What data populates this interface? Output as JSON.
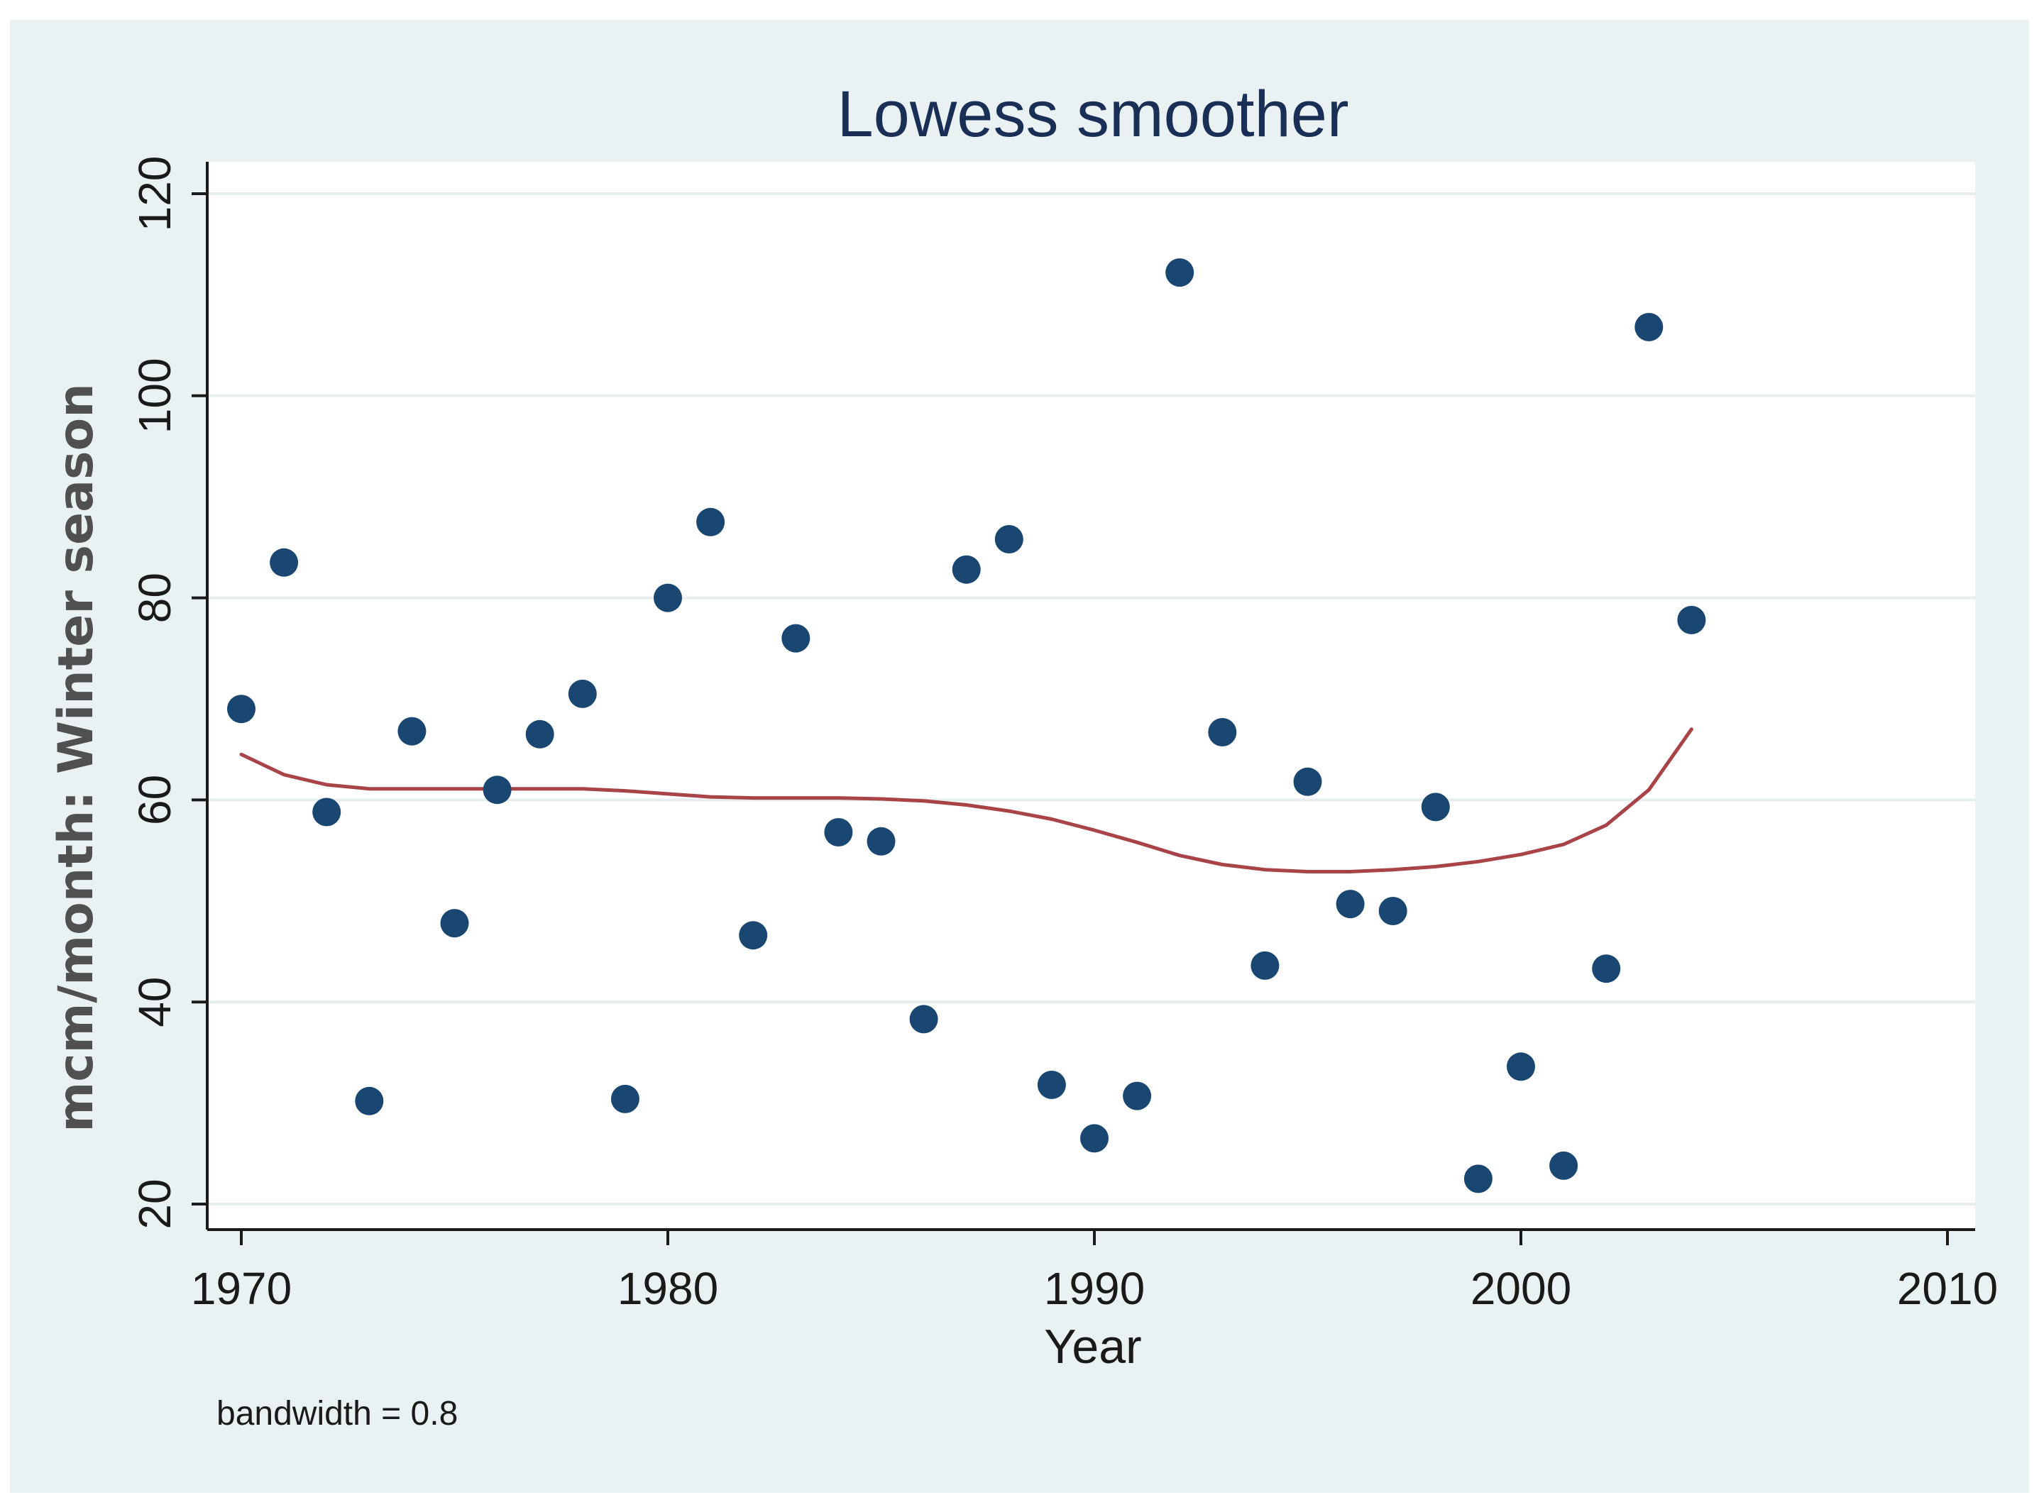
{
  "chart_data": {
    "type": "scatter",
    "title": "Lowess smoother",
    "xlabel": "Year",
    "ylabel": "mcm/month: Winter season",
    "xlim": [
      1969.25,
      2010.75
    ],
    "ylim": [
      17.5,
      123
    ],
    "x_ticks": [
      1970,
      1980,
      1990,
      2000,
      2010
    ],
    "y_ticks": [
      20,
      40,
      60,
      80,
      100,
      120
    ],
    "x_tick_labels": [
      "1970",
      "1980",
      "1990",
      "2000",
      "2010"
    ],
    "y_tick_labels": [
      "20",
      "40",
      "60",
      "80",
      "100",
      "120"
    ],
    "grid": true,
    "legend": "none",
    "note": "bandwidth = 0.8",
    "series": [
      {
        "name": "observed",
        "kind": "scatter",
        "color": "#1a4672",
        "x": [
          1970,
          1971,
          1972,
          1973,
          1974,
          1975,
          1976,
          1977,
          1978,
          1979,
          1980,
          1981,
          1982,
          1983,
          1984,
          1985,
          1986,
          1987,
          1988,
          1989,
          1990,
          1991,
          1992,
          1993,
          1994,
          1995,
          1996,
          1997,
          1998,
          1999,
          2000,
          2001,
          2002,
          2003,
          2004
        ],
        "y": [
          69,
          83.5,
          58.8,
          30.2,
          66.8,
          47.8,
          61,
          66.5,
          70.5,
          30.4,
          80,
          87.5,
          46.6,
          76,
          56.8,
          55.9,
          38.3,
          82.8,
          85.8,
          31.8,
          26.5,
          30.7,
          112.2,
          66.7,
          43.6,
          61.8,
          49.7,
          49,
          59.3,
          22.5,
          33.6,
          23.8,
          43.3,
          106.8,
          77.8
        ]
      },
      {
        "name": "lowess",
        "kind": "line",
        "color": "#a84448",
        "x": [
          1970,
          1971,
          1972,
          1973,
          1974,
          1975,
          1976,
          1977,
          1978,
          1979,
          1980,
          1981,
          1982,
          1983,
          1984,
          1985,
          1986,
          1987,
          1988,
          1989,
          1990,
          1991,
          1992,
          1993,
          1994,
          1995,
          1996,
          1997,
          1998,
          1999,
          2000,
          2001,
          2002,
          2003,
          2004
        ],
        "y": [
          64.5,
          62.5,
          61.5,
          61.1,
          61.1,
          61.1,
          61.1,
          61.1,
          61.1,
          60.9,
          60.6,
          60.3,
          60.2,
          60.2,
          60.2,
          60.1,
          59.9,
          59.5,
          58.9,
          58.1,
          57.0,
          55.8,
          54.5,
          53.6,
          53.1,
          52.9,
          52.9,
          53.1,
          53.4,
          53.9,
          54.6,
          55.6,
          57.5,
          61.0,
          67.0
        ]
      }
    ]
  }
}
